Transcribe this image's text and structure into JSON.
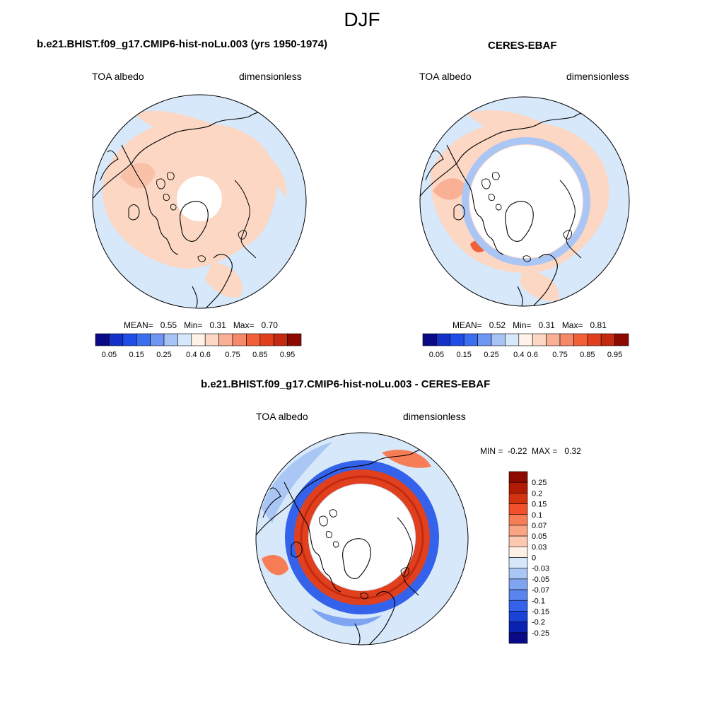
{
  "figure": {
    "title": "DJF",
    "colors": {
      "background": "#ffffff",
      "light_red": "#fbd7c4",
      "light_blue": "#d6e8fa",
      "ring_red": "#e0401e",
      "ring_dark_red": "#c42a10",
      "deep_blue": "#2a5ee8",
      "coast": "#000000"
    },
    "albedo_scale": {
      "labels": [
        "0.05",
        "0.15",
        "0.25",
        "0.4",
        "0.6",
        "0.75",
        "0.85",
        "0.95"
      ],
      "colors": [
        "#0a0a86",
        "#1432c8",
        "#1e4ee6",
        "#3c6ef0",
        "#6f96f2",
        "#a7c2f5",
        "#d6e8fa",
        "#fff2e8",
        "#fbd7c4",
        "#f9b095",
        "#f7896b",
        "#f2603a",
        "#e0401e",
        "#c42a10",
        "#8c0a00"
      ]
    },
    "diff_scale": {
      "labels": [
        "0.25",
        "0.2",
        "0.15",
        "0.1",
        "0.07",
        "0.05",
        "0.03",
        "0",
        "-0.03",
        "-0.05",
        "-0.07",
        "-0.1",
        "-0.15",
        "-0.2",
        "-0.25"
      ],
      "colors": [
        "#8c0a00",
        "#b21a04",
        "#d4320e",
        "#f2502a",
        "#f77d56",
        "#f9a584",
        "#fcc8b0",
        "#fff0e6",
        "#d6e8fa",
        "#aac6f5",
        "#7ea4f2",
        "#5a84ee",
        "#3462ea",
        "#1a44d8",
        "#0a22b2",
        "#0a0a86"
      ]
    }
  },
  "panels": {
    "model": {
      "title": "b.e21.BHIST.f09_g17.CMIP6-hist-noLu.003 (yrs 1950-1974)",
      "variable": "TOA albedo",
      "units": "dimensionless",
      "stats": {
        "mean_label": "MEAN=",
        "mean": "0.55",
        "min_label": "Min=",
        "min": "0.31",
        "max_label": "Max=",
        "max": "0.70"
      }
    },
    "obs": {
      "title": "CERES-EBAF",
      "variable": "TOA albedo",
      "units": "dimensionless",
      "stats": {
        "mean_label": "MEAN=",
        "mean": "0.52",
        "min_label": "Min=",
        "min": "0.31",
        "max_label": "Max=",
        "max": "0.81"
      }
    },
    "diff": {
      "title": "b.e21.BHIST.f09_g17.CMIP6-hist-noLu.003 - CERES-EBAF",
      "variable": "TOA albedo",
      "units": "dimensionless",
      "stats": {
        "min_label": "MIN =",
        "min": "-0.22",
        "max_label": "MAX =",
        "max": "0.32"
      }
    }
  }
}
